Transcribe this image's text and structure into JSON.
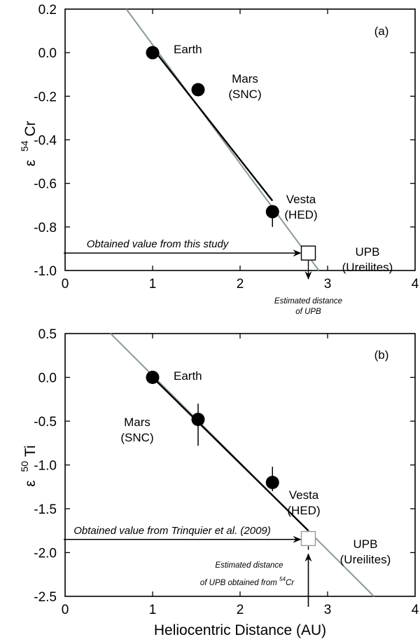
{
  "chart_data": [
    {
      "type": "scatter",
      "panel_label": "(a)",
      "title": "",
      "xlabel": "",
      "ylabel": "ε 54Cr",
      "ylabel_parts": {
        "symbol": "ε",
        "superscript": "54",
        "element": "Cr"
      },
      "xlim": [
        0,
        4
      ],
      "ylim": [
        -1.0,
        0.2
      ],
      "x_ticks": [
        "0",
        "1",
        "2",
        "3",
        "4"
      ],
      "y_ticks": [
        "0.2",
        "0.0",
        "-0.2",
        "-0.4",
        "-0.6",
        "-0.8",
        "-1.0"
      ],
      "grid": false,
      "points": [
        {
          "name": "Earth",
          "label_lines": [
            "Earth"
          ],
          "x": 1.0,
          "y": 0.0,
          "err_low": 0.0,
          "err_high": 0.0,
          "marker": "filled-circle"
        },
        {
          "name": "Mars",
          "label_lines": [
            "Mars",
            "(SNC)"
          ],
          "x": 1.52,
          "y": -0.17,
          "err_low": -0.18,
          "err_high": -0.15,
          "marker": "filled-circle"
        },
        {
          "name": "Vesta",
          "label_lines": [
            "Vesta",
            "(HED)"
          ],
          "x": 2.37,
          "y": -0.73,
          "err_low": -0.8,
          "err_high": -0.73,
          "marker": "filled-circle"
        },
        {
          "name": "UPB",
          "label_lines": [
            "UPB",
            "(Ureilites)"
          ],
          "x": 2.78,
          "y": -0.92,
          "marker": "open-square"
        }
      ],
      "fit_line_black": {
        "x": [
          1.0,
          2.37
        ],
        "y": [
          0.02,
          -0.68
        ]
      },
      "fit_line_gray": {
        "x": [
          0.7,
          2.9
        ],
        "y": [
          0.2,
          -1.0
        ]
      },
      "annotations": {
        "horizontal_arrow_text": "Obtained value from this study",
        "horizontal_arrow_y": -0.92,
        "vertical_arrow_text_lines": [
          "Estimated distance",
          "of UPB"
        ],
        "vertical_arrow_x": 2.78
      }
    },
    {
      "type": "scatter",
      "panel_label": "(b)",
      "title": "",
      "xlabel": "Heliocentric Distance (AU)",
      "ylabel": "ε 50Ti",
      "ylabel_parts": {
        "symbol": "ε",
        "superscript": "50",
        "element": "Ti"
      },
      "xlim": [
        0,
        4
      ],
      "ylim": [
        -2.5,
        0.5
      ],
      "x_ticks": [
        "0",
        "1",
        "2",
        "3",
        "4"
      ],
      "y_ticks": [
        "0.5",
        "0.0",
        "-0.5",
        "-1.0",
        "-1.5",
        "-2.0",
        "-2.5"
      ],
      "grid": false,
      "points": [
        {
          "name": "Earth",
          "label_lines": [
            "Earth"
          ],
          "x": 1.0,
          "y": 0.0,
          "err_low": 0.0,
          "err_high": 0.0,
          "marker": "filled-circle"
        },
        {
          "name": "Mars",
          "label_lines": [
            "Mars",
            "(SNC)"
          ],
          "x": 1.52,
          "y": -0.48,
          "err_low": -0.78,
          "err_high": -0.3,
          "marker": "filled-circle"
        },
        {
          "name": "Vesta",
          "label_lines": [
            "Vesta",
            "(HED)"
          ],
          "x": 2.37,
          "y": -1.2,
          "err_low": -1.3,
          "err_high": -1.02,
          "marker": "filled-circle"
        },
        {
          "name": "UPB",
          "label_lines": [
            "UPB",
            "(Ureilites)"
          ],
          "x": 2.78,
          "y": -1.84,
          "marker": "open-square"
        }
      ],
      "fit_line_black": {
        "x": [
          1.0,
          2.78
        ],
        "y": [
          0.0,
          -1.75
        ]
      },
      "fit_line_gray": {
        "x": [
          0.52,
          3.53
        ],
        "y": [
          0.5,
          -2.5
        ]
      },
      "annotations": {
        "horizontal_arrow_text": "Obtained value from Trinquier et al. (2009)",
        "horizontal_arrow_y": -1.85,
        "vertical_arrow_text_lines": [
          "Estimated distance",
          "of UPB obtained from 54Cr"
        ],
        "vertical_arrow_text_parts": {
          "line1": "Estimated distance",
          "line2_prefix": "of UPB obtained from ",
          "sup": "54",
          "suffix": "Cr"
        },
        "vertical_arrow_x": 2.78
      }
    }
  ],
  "colors": {
    "axis": "#000000",
    "fit_black": "#000000",
    "fit_gray": "#8a9a98",
    "marker": "#000000",
    "square_fill": "#ffffff",
    "square_stroke_a": "#000000",
    "square_stroke_b": "#999999"
  }
}
